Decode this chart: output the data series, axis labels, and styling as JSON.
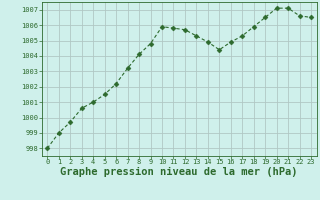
{
  "x": [
    0,
    1,
    2,
    3,
    4,
    5,
    6,
    7,
    8,
    9,
    10,
    11,
    12,
    13,
    14,
    15,
    16,
    17,
    18,
    19,
    20,
    21,
    22,
    23
  ],
  "y": [
    998.0,
    999.0,
    999.7,
    1000.6,
    1001.0,
    1001.5,
    1002.2,
    1003.2,
    1004.1,
    1004.8,
    1005.9,
    1005.8,
    1005.7,
    1005.3,
    1004.9,
    1004.4,
    1004.9,
    1005.3,
    1005.9,
    1006.5,
    1007.1,
    1007.1,
    1006.6,
    1006.5
  ],
  "line_color": "#2d6a2d",
  "marker": "D",
  "marker_size": 2.5,
  "bg_color": "#cff0eb",
  "grid_color": "#b0c8c4",
  "xlabel": "Graphe pression niveau de la mer (hPa)",
  "xlabel_fontsize": 7.5,
  "ylim": [
    997.5,
    1007.5
  ],
  "xlim": [
    -0.5,
    23.5
  ],
  "yticks": [
    998,
    999,
    1000,
    1001,
    1002,
    1003,
    1004,
    1005,
    1006,
    1007
  ],
  "xtick_labels": [
    "0",
    "1",
    "2",
    "3",
    "4",
    "5",
    "6",
    "7",
    "8",
    "9",
    "10",
    "11",
    "12",
    "13",
    "14",
    "15",
    "16",
    "17",
    "18",
    "19",
    "20",
    "21",
    "22",
    "23"
  ]
}
